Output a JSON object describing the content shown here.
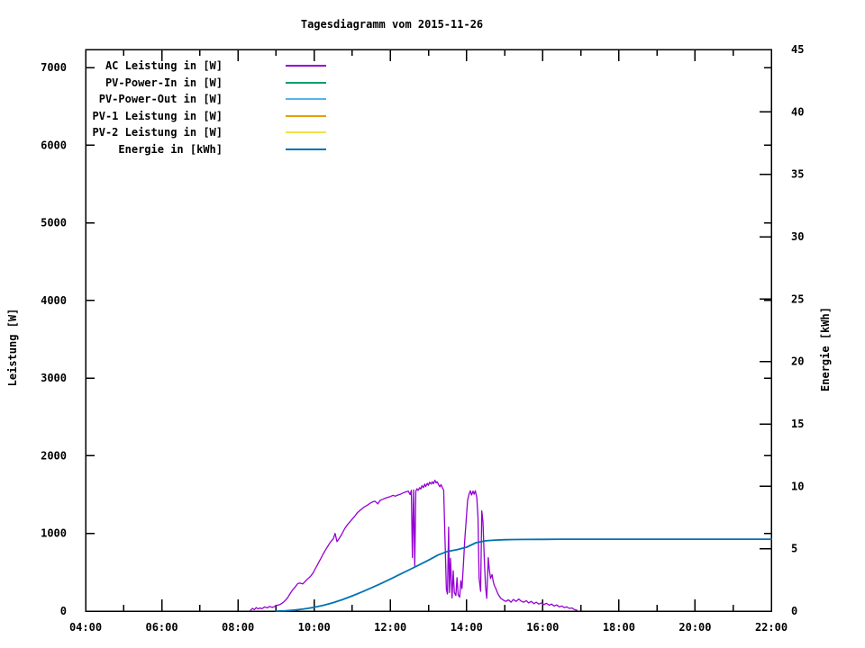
{
  "chart_data": {
    "type": "line",
    "title": "Tagesdiagramm vom 2015-11-26",
    "background": "#ffffff",
    "grid": false,
    "legend_position": "top-left-inside",
    "x_axis": {
      "unit": "time",
      "range": [
        4,
        22
      ],
      "major_ticks": [
        {
          "h": 4,
          "label": "04:00"
        },
        {
          "h": 6,
          "label": "06:00"
        },
        {
          "h": 8,
          "label": "08:00"
        },
        {
          "h": 10,
          "label": "10:00"
        },
        {
          "h": 12,
          "label": "12:00"
        },
        {
          "h": 14,
          "label": "14:00"
        },
        {
          "h": 16,
          "label": "16:00"
        },
        {
          "h": 18,
          "label": "18:00"
        },
        {
          "h": 20,
          "label": "20:00"
        },
        {
          "h": 22,
          "label": "22:00"
        }
      ],
      "minor_ticks": [
        5,
        7,
        9,
        11,
        13,
        15,
        17,
        19,
        21
      ]
    },
    "y_left": {
      "label": "Leistung [W]",
      "range": [
        0,
        7232
      ],
      "ticks": [
        {
          "v": 0,
          "label": "0"
        },
        {
          "v": 1000,
          "label": "1000"
        },
        {
          "v": 2000,
          "label": "2000"
        },
        {
          "v": 3000,
          "label": "3000"
        },
        {
          "v": 4000,
          "label": "4000"
        },
        {
          "v": 5000,
          "label": "5000"
        },
        {
          "v": 6000,
          "label": "6000"
        },
        {
          "v": 7000,
          "label": "7000"
        }
      ]
    },
    "y_right": {
      "label": "Energie [kWh]",
      "range": [
        0,
        45
      ],
      "ticks": [
        {
          "v": 0,
          "label": "0"
        },
        {
          "v": 5,
          "label": "5"
        },
        {
          "v": 10,
          "label": "10"
        },
        {
          "v": 15,
          "label": "15"
        },
        {
          "v": 20,
          "label": "20"
        },
        {
          "v": 25,
          "label": "25"
        },
        {
          "v": 30,
          "label": "30"
        },
        {
          "v": 35,
          "label": "35"
        },
        {
          "v": 40,
          "label": "40"
        },
        {
          "v": 45,
          "label": "45"
        }
      ]
    },
    "series": [
      {
        "name": "AC Leistung in [W]",
        "color": "#9400d3",
        "axis": "left",
        "points": [
          [
            8.33,
            10
          ],
          [
            8.38,
            35
          ],
          [
            8.43,
            18
          ],
          [
            8.48,
            45
          ],
          [
            8.53,
            28
          ],
          [
            8.58,
            40
          ],
          [
            8.63,
            30
          ],
          [
            8.7,
            55
          ],
          [
            8.77,
            42
          ],
          [
            8.83,
            60
          ],
          [
            8.9,
            48
          ],
          [
            8.97,
            62
          ],
          [
            9.03,
            75
          ],
          [
            9.1,
            85
          ],
          [
            9.17,
            105
          ],
          [
            9.23,
            130
          ],
          [
            9.3,
            170
          ],
          [
            9.37,
            225
          ],
          [
            9.43,
            270
          ],
          [
            9.5,
            310
          ],
          [
            9.57,
            355
          ],
          [
            9.63,
            360
          ],
          [
            9.7,
            350
          ],
          [
            9.77,
            385
          ],
          [
            9.83,
            415
          ],
          [
            9.9,
            445
          ],
          [
            9.97,
            490
          ],
          [
            10.03,
            545
          ],
          [
            10.1,
            610
          ],
          [
            10.17,
            675
          ],
          [
            10.23,
            730
          ],
          [
            10.3,
            790
          ],
          [
            10.37,
            845
          ],
          [
            10.43,
            890
          ],
          [
            10.5,
            930
          ],
          [
            10.55,
            1000
          ],
          [
            10.6,
            895
          ],
          [
            10.65,
            930
          ],
          [
            10.72,
            985
          ],
          [
            10.8,
            1060
          ],
          [
            10.87,
            1110
          ],
          [
            10.93,
            1145
          ],
          [
            11.0,
            1185
          ],
          [
            11.07,
            1225
          ],
          [
            11.13,
            1265
          ],
          [
            11.2,
            1295
          ],
          [
            11.27,
            1325
          ],
          [
            11.33,
            1345
          ],
          [
            11.4,
            1365
          ],
          [
            11.47,
            1390
          ],
          [
            11.53,
            1405
          ],
          [
            11.6,
            1415
          ],
          [
            11.67,
            1380
          ],
          [
            11.73,
            1425
          ],
          [
            11.8,
            1440
          ],
          [
            11.87,
            1455
          ],
          [
            11.93,
            1465
          ],
          [
            12.0,
            1475
          ],
          [
            12.07,
            1490
          ],
          [
            12.13,
            1480
          ],
          [
            12.2,
            1495
          ],
          [
            12.27,
            1505
          ],
          [
            12.33,
            1520
          ],
          [
            12.4,
            1535
          ],
          [
            12.47,
            1545
          ],
          [
            12.52,
            1500
          ],
          [
            12.55,
            1555
          ],
          [
            12.58,
            690
          ],
          [
            12.61,
            1560
          ],
          [
            12.64,
            575
          ],
          [
            12.67,
            1545
          ],
          [
            12.7,
            1575
          ],
          [
            12.73,
            1555
          ],
          [
            12.77,
            1590
          ],
          [
            12.8,
            1570
          ],
          [
            12.83,
            1615
          ],
          [
            12.87,
            1590
          ],
          [
            12.9,
            1635
          ],
          [
            12.93,
            1605
          ],
          [
            12.97,
            1645
          ],
          [
            13.0,
            1620
          ],
          [
            13.03,
            1660
          ],
          [
            13.07,
            1635
          ],
          [
            13.1,
            1665
          ],
          [
            13.13,
            1640
          ],
          [
            13.17,
            1685
          ],
          [
            13.2,
            1650
          ],
          [
            13.23,
            1665
          ],
          [
            13.27,
            1625
          ],
          [
            13.3,
            1600
          ],
          [
            13.33,
            1630
          ],
          [
            13.37,
            1585
          ],
          [
            13.4,
            1560
          ],
          [
            13.43,
            1000
          ],
          [
            13.47,
            280
          ],
          [
            13.5,
            220
          ],
          [
            13.53,
            1080
          ],
          [
            13.55,
            240
          ],
          [
            13.58,
            680
          ],
          [
            13.62,
            170
          ],
          [
            13.65,
            520
          ],
          [
            13.68,
            240
          ],
          [
            13.72,
            200
          ],
          [
            13.75,
            430
          ],
          [
            13.78,
            210
          ],
          [
            13.82,
            180
          ],
          [
            13.85,
            390
          ],
          [
            13.88,
            290
          ],
          [
            13.92,
            620
          ],
          [
            13.95,
            900
          ],
          [
            14.0,
            1240
          ],
          [
            14.03,
            1430
          ],
          [
            14.07,
            1510
          ],
          [
            14.1,
            1550
          ],
          [
            14.13,
            1495
          ],
          [
            14.17,
            1545
          ],
          [
            14.2,
            1505
          ],
          [
            14.23,
            1550
          ],
          [
            14.27,
            1460
          ],
          [
            14.3,
            1200
          ],
          [
            14.33,
            430
          ],
          [
            14.37,
            255
          ],
          [
            14.4,
            1290
          ],
          [
            14.43,
            1150
          ],
          [
            14.47,
            640
          ],
          [
            14.5,
            310
          ],
          [
            14.53,
            165
          ],
          [
            14.57,
            690
          ],
          [
            14.6,
            530
          ],
          [
            14.63,
            420
          ],
          [
            14.67,
            470
          ],
          [
            14.7,
            380
          ],
          [
            14.73,
            330
          ],
          [
            14.77,
            290
          ],
          [
            14.8,
            250
          ],
          [
            14.83,
            215
          ],
          [
            14.87,
            185
          ],
          [
            14.9,
            165
          ],
          [
            14.97,
            140
          ],
          [
            15.03,
            125
          ],
          [
            15.1,
            145
          ],
          [
            15.17,
            115
          ],
          [
            15.23,
            150
          ],
          [
            15.3,
            125
          ],
          [
            15.37,
            155
          ],
          [
            15.43,
            130
          ],
          [
            15.5,
            115
          ],
          [
            15.57,
            135
          ],
          [
            15.63,
            105
          ],
          [
            15.7,
            125
          ],
          [
            15.77,
            95
          ],
          [
            15.83,
            115
          ],
          [
            15.9,
            90
          ],
          [
            15.97,
            105
          ],
          [
            16.03,
            85
          ],
          [
            16.1,
            100
          ],
          [
            16.17,
            75
          ],
          [
            16.23,
            90
          ],
          [
            16.3,
            65
          ],
          [
            16.37,
            80
          ],
          [
            16.43,
            55
          ],
          [
            16.5,
            65
          ],
          [
            16.57,
            45
          ],
          [
            16.63,
            55
          ],
          [
            16.7,
            35
          ],
          [
            16.77,
            40
          ],
          [
            16.83,
            20
          ],
          [
            16.9,
            10
          ]
        ]
      },
      {
        "name": "PV-Power-In in [W]",
        "color": "#009e73",
        "axis": "left",
        "points": []
      },
      {
        "name": "PV-Power-Out in [W]",
        "color": "#56b4e9",
        "axis": "left",
        "points": []
      },
      {
        "name": "PV-1 Leistung in [W]",
        "color": "#e69f00",
        "axis": "left",
        "points": []
      },
      {
        "name": "PV-2 Leistung in [W]",
        "color": "#f0e442",
        "axis": "left",
        "points": []
      },
      {
        "name": "Energie in [kWh]",
        "color": "#0072b2",
        "axis": "right",
        "points": [
          [
            9.0,
            0
          ],
          [
            9.25,
            0.03
          ],
          [
            9.5,
            0.09
          ],
          [
            9.75,
            0.18
          ],
          [
            10.0,
            0.3
          ],
          [
            10.25,
            0.47
          ],
          [
            10.5,
            0.68
          ],
          [
            10.75,
            0.93
          ],
          [
            11.0,
            1.22
          ],
          [
            11.25,
            1.53
          ],
          [
            11.5,
            1.86
          ],
          [
            11.75,
            2.21
          ],
          [
            12.0,
            2.57
          ],
          [
            12.25,
            2.94
          ],
          [
            12.5,
            3.32
          ],
          [
            12.75,
            3.69
          ],
          [
            13.0,
            4.08
          ],
          [
            13.25,
            4.49
          ],
          [
            13.5,
            4.78
          ],
          [
            13.75,
            4.92
          ],
          [
            14.0,
            5.12
          ],
          [
            14.25,
            5.48
          ],
          [
            14.5,
            5.63
          ],
          [
            14.75,
            5.69
          ],
          [
            15.0,
            5.72
          ],
          [
            15.25,
            5.73
          ],
          [
            15.5,
            5.74
          ],
          [
            16.0,
            5.75
          ],
          [
            16.5,
            5.76
          ],
          [
            17.0,
            5.76
          ],
          [
            18.0,
            5.76
          ],
          [
            19.0,
            5.76
          ],
          [
            20.0,
            5.76
          ],
          [
            21.0,
            5.76
          ],
          [
            22.0,
            5.76
          ]
        ]
      }
    ]
  }
}
